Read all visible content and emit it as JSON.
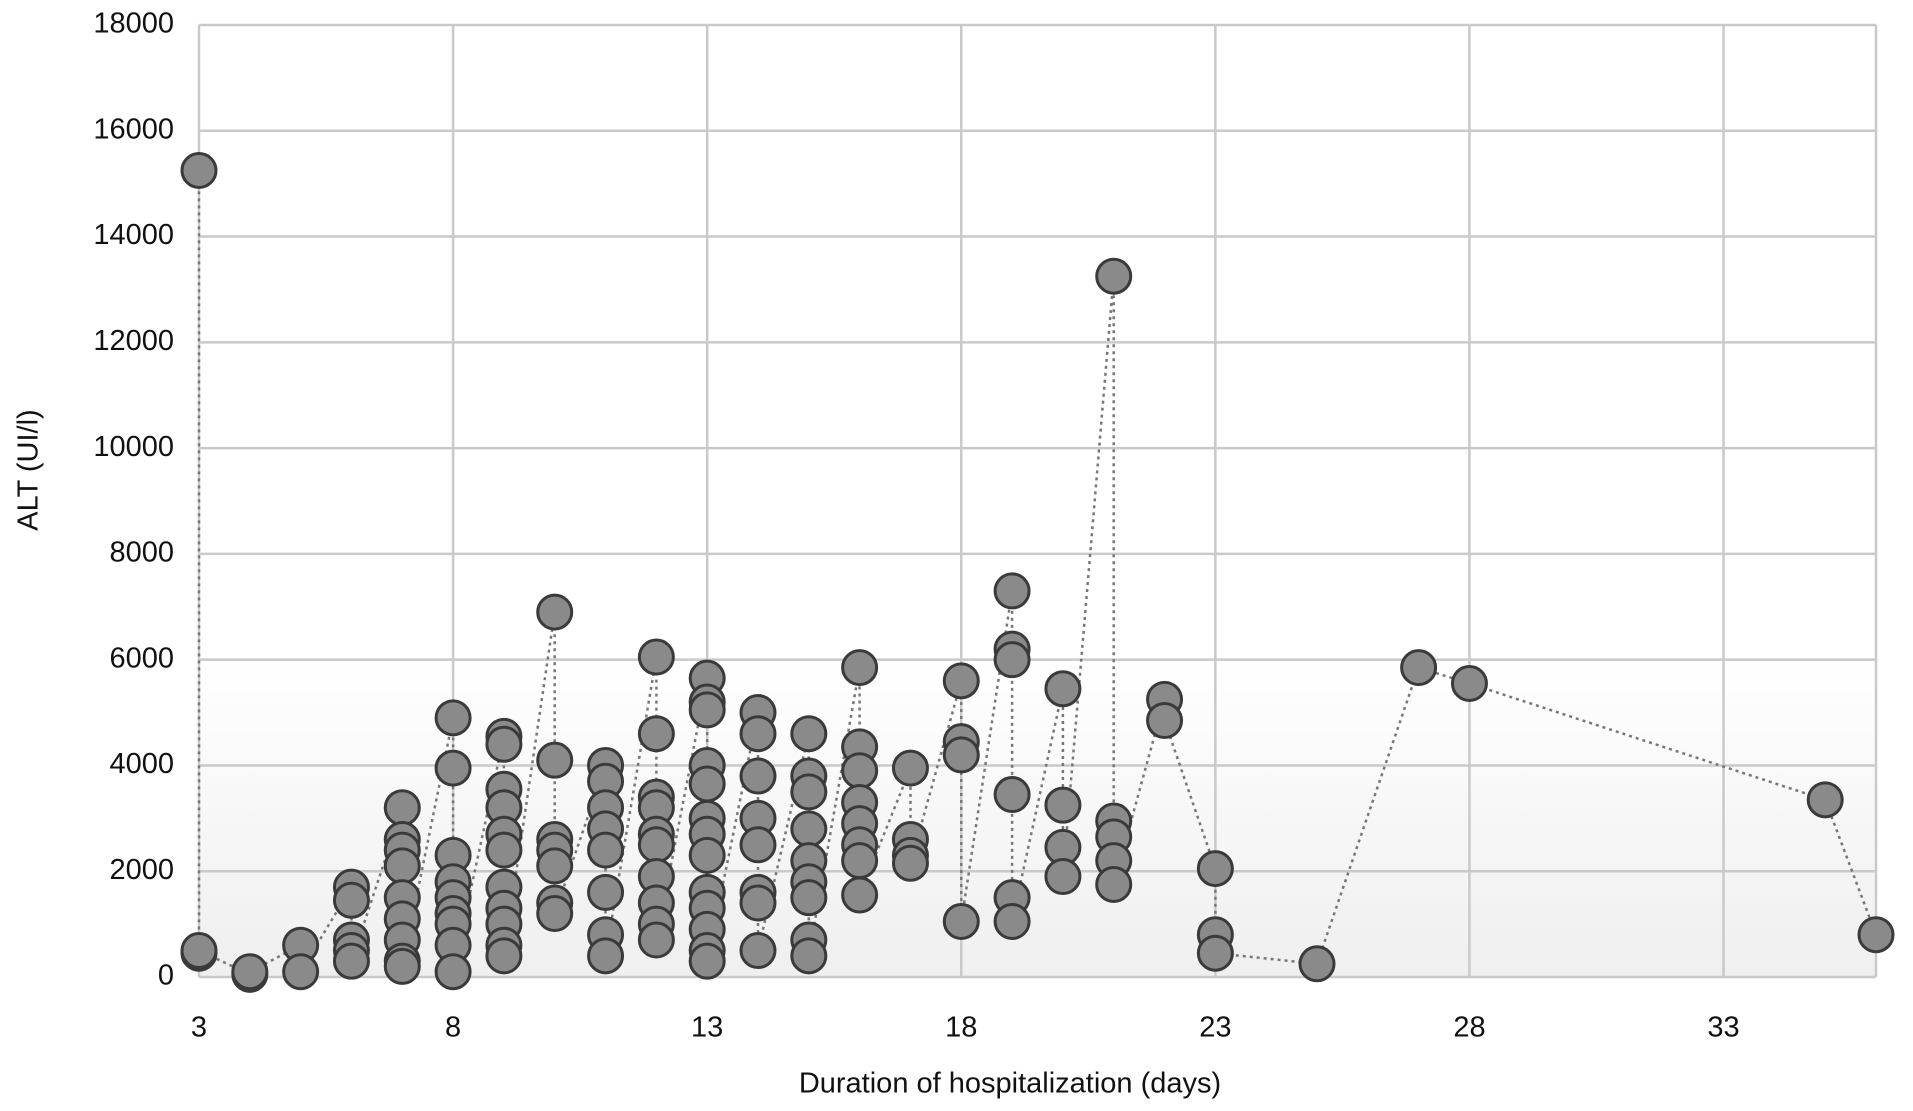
{
  "chart_data": {
    "type": "scatter",
    "xlabel": "Duration of hospitalization (days)",
    "ylabel": "ALT (UI/l)",
    "x": [
      3,
      3,
      3,
      4,
      4,
      5,
      5,
      6,
      6,
      6,
      6,
      6,
      7,
      7,
      7,
      7,
      7,
      7,
      7,
      7,
      7,
      8,
      8,
      8,
      8,
      8,
      8,
      8,
      8,
      8,
      9,
      9,
      9,
      9,
      9,
      9,
      9,
      9,
      9,
      9,
      9,
      10,
      10,
      10,
      10,
      10,
      10,
      10,
      11,
      11,
      11,
      11,
      11,
      11,
      11,
      11,
      12,
      12,
      12,
      12,
      12,
      12,
      12,
      12,
      12,
      12,
      13,
      13,
      13,
      13,
      13,
      13,
      13,
      13,
      13,
      13,
      13,
      13,
      13,
      14,
      14,
      14,
      14,
      14,
      14,
      14,
      14,
      15,
      15,
      15,
      15,
      15,
      15,
      15,
      15,
      15,
      16,
      16,
      16,
      16,
      16,
      16,
      16,
      16,
      17,
      17,
      17,
      17,
      18,
      18,
      18,
      18,
      19,
      19,
      19,
      19,
      19,
      19,
      20,
      20,
      20,
      20,
      21,
      21,
      21,
      21,
      21,
      22,
      22,
      23,
      23,
      23,
      25,
      27,
      28,
      35,
      36
    ],
    "values": [
      15250,
      450,
      500,
      50,
      100,
      600,
      100,
      1700,
      1450,
      700,
      500,
      300,
      3200,
      2600,
      2400,
      2100,
      1500,
      1100,
      700,
      300,
      200,
      4900,
      3950,
      2300,
      1800,
      1500,
      1200,
      1000,
      600,
      100,
      4550,
      4400,
      3550,
      3200,
      2700,
      2400,
      1700,
      1300,
      1000,
      600,
      400,
      6900,
      4100,
      2600,
      2400,
      2100,
      1400,
      1200,
      4000,
      3700,
      3200,
      2800,
      2400,
      1600,
      800,
      400,
      6050,
      4600,
      3400,
      3200,
      2700,
      2500,
      1900,
      1400,
      1000,
      700,
      5650,
      5200,
      5050,
      4000,
      3650,
      3000,
      2700,
      2300,
      1600,
      1300,
      900,
      500,
      300,
      5000,
      4600,
      3800,
      3000,
      2500,
      1600,
      1400,
      500,
      4600,
      3800,
      3500,
      2800,
      2200,
      1800,
      1500,
      700,
      400,
      5850,
      4350,
      3900,
      3300,
      2900,
      2500,
      2200,
      1550,
      3950,
      2600,
      2300,
      2150,
      5600,
      4450,
      4200,
      1050,
      7300,
      6200,
      6000,
      3450,
      1500,
      1050,
      5450,
      3250,
      2450,
      1900,
      13250,
      2950,
      2650,
      2200,
      1750,
      5250,
      4850,
      2050,
      800,
      450,
      250,
      5850,
      5550,
      3350,
      800
    ],
    "color": "#8a8a8a",
    "xlim": [
      3,
      36
    ],
    "xticks": [
      3,
      8,
      13,
      18,
      23,
      28,
      33
    ],
    "ylim": [
      0,
      18000
    ],
    "yticks": [
      0,
      2000,
      4000,
      6000,
      8000,
      10000,
      12000,
      14000,
      16000,
      18000
    ],
    "grid": true
  }
}
